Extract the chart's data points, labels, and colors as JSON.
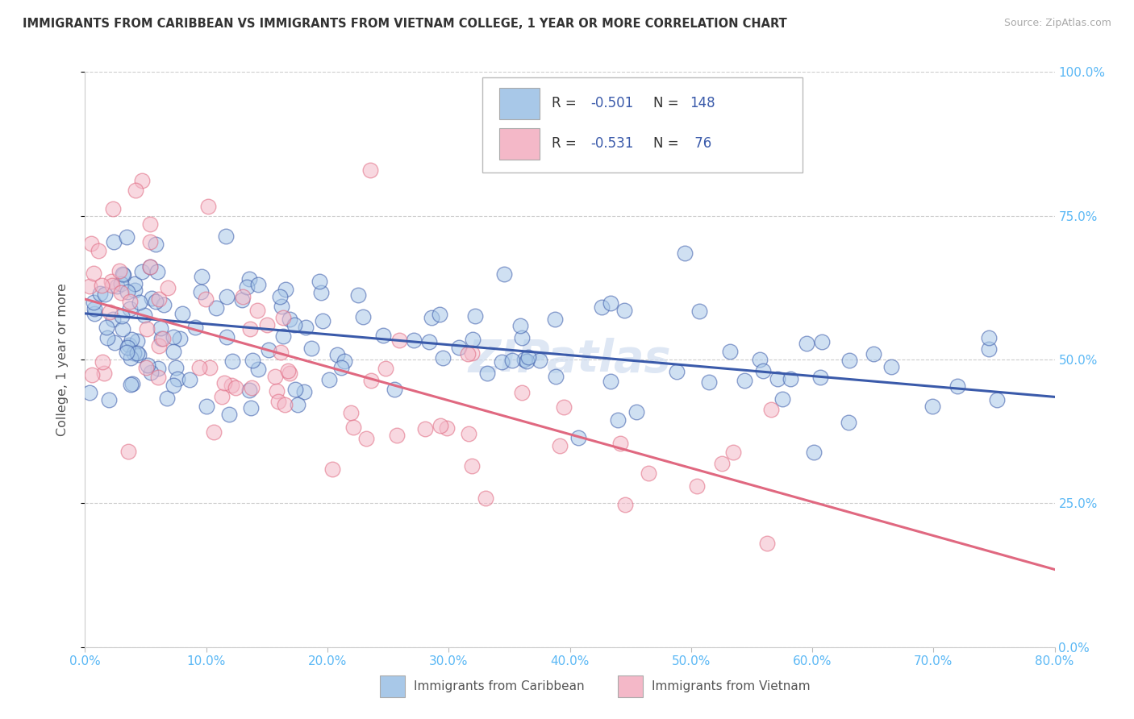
{
  "title": "IMMIGRANTS FROM CARIBBEAN VS IMMIGRANTS FROM VIETNAM COLLEGE, 1 YEAR OR MORE CORRELATION CHART",
  "source": "Source: ZipAtlas.com",
  "ylabel": "College, 1 year or more",
  "color_caribbean": "#a8c8e8",
  "color_vietnam": "#f4b8c8",
  "color_caribbean_line": "#3a5aaa",
  "color_vietnam_line": "#e06880",
  "color_legend_text": "#3a5aaa",
  "color_axis_ticks": "#5bb8f5",
  "watermark_text": "ZIPatlas",
  "legend_r1": "R = -0.501",
  "legend_n1": "N = 148",
  "legend_r2": "R = -0.531",
  "legend_n2": "N =  76",
  "xlim": [
    0.0,
    0.8
  ],
  "ylim": [
    0.0,
    1.0
  ],
  "ytick_positions": [
    0.0,
    0.25,
    0.5,
    0.75,
    1.0
  ],
  "xtick_positions": [
    0.0,
    0.1,
    0.2,
    0.3,
    0.4,
    0.5,
    0.6,
    0.7,
    0.8
  ],
  "caribbean_line_x0": 0.0,
  "caribbean_line_x1": 0.8,
  "caribbean_line_y0": 0.58,
  "caribbean_line_y1": 0.435,
  "vietnam_line_x0": 0.0,
  "vietnam_line_x1": 0.8,
  "vietnam_line_y0": 0.605,
  "vietnam_line_y1": 0.135,
  "bottom_legend_carib": "Immigrants from Caribbean",
  "bottom_legend_viet": "Immigrants from Vietnam"
}
